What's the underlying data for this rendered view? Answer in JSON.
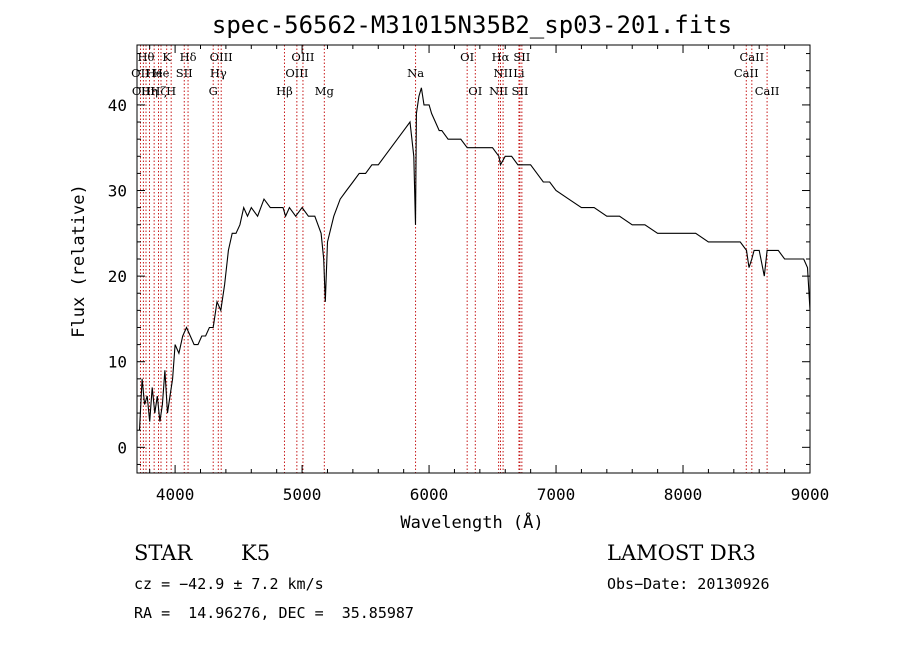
{
  "chart_data": {
    "type": "line",
    "title": "spec-56562-M31015N35B2_sp03-201.fits",
    "xlabel": "Wavelength (Å)",
    "ylabel": "Flux (relative)",
    "xlim": [
      3700,
      9000
    ],
    "ylim": [
      -3,
      47
    ],
    "xticks": [
      4000,
      5000,
      6000,
      7000,
      8000,
      9000
    ],
    "yticks": [
      0,
      10,
      20,
      30,
      40
    ],
    "series": [
      {
        "name": "flux",
        "x": [
          3720,
          3740,
          3760,
          3780,
          3800,
          3820,
          3840,
          3860,
          3880,
          3900,
          3920,
          3940,
          3960,
          3980,
          4000,
          4030,
          4060,
          4090,
          4120,
          4150,
          4180,
          4210,
          4240,
          4270,
          4300,
          4330,
          4360,
          4390,
          4420,
          4450,
          4480,
          4510,
          4540,
          4570,
          4600,
          4650,
          4700,
          4750,
          4800,
          4850,
          4870,
          4900,
          4950,
          5000,
          5050,
          5100,
          5150,
          5170,
          5183,
          5200,
          5250,
          5300,
          5350,
          5400,
          5450,
          5500,
          5550,
          5600,
          5650,
          5700,
          5750,
          5800,
          5850,
          5880,
          5893,
          5900,
          5920,
          5940,
          5960,
          5980,
          6000,
          6020,
          6050,
          6080,
          6100,
          6150,
          6200,
          6250,
          6300,
          6350,
          6400,
          6450,
          6500,
          6550,
          6563,
          6600,
          6650,
          6700,
          6750,
          6800,
          6850,
          6900,
          6950,
          7000,
          7100,
          7200,
          7300,
          7400,
          7500,
          7600,
          7700,
          7800,
          7900,
          8000,
          8100,
          8200,
          8300,
          8400,
          8450,
          8500,
          8520,
          8542,
          8560,
          8600,
          8640,
          8662,
          8700,
          8750,
          8800,
          8850,
          8900,
          8950,
          8980,
          9000
        ],
        "y": [
          2,
          8,
          5,
          6,
          3,
          7,
          4,
          6,
          3,
          5,
          9,
          4,
          6,
          8,
          12,
          11,
          13,
          14,
          13,
          12,
          12,
          13,
          13,
          14,
          14,
          17,
          16,
          19,
          23,
          25,
          25,
          26,
          28,
          27,
          28,
          27,
          29,
          28,
          28,
          28,
          27,
          28,
          27,
          28,
          27,
          27,
          25,
          22,
          17,
          24,
          27,
          29,
          30,
          31,
          32,
          32,
          33,
          33,
          34,
          35,
          36,
          37,
          38,
          34,
          26,
          39,
          41,
          42,
          40,
          40,
          40,
          39,
          38,
          37,
          37,
          36,
          36,
          36,
          35,
          35,
          35,
          35,
          35,
          34,
          33,
          34,
          34,
          33,
          33,
          33,
          32,
          31,
          31,
          30,
          29,
          28,
          28,
          27,
          27,
          26,
          26,
          25,
          25,
          25,
          25,
          24,
          24,
          24,
          24,
          23,
          21,
          22,
          23,
          23,
          20,
          23,
          23,
          23,
          22,
          22,
          22,
          22,
          21,
          16
        ]
      }
    ],
    "lines": [
      {
        "w": 3727,
        "label": "OII",
        "row": 2
      },
      {
        "w": 3750,
        "label": "OIII",
        "row": 3
      },
      {
        "w": 3771,
        "label": "Hθ",
        "row": 1
      },
      {
        "w": 3798,
        "label": "Hη",
        "row": 3
      },
      {
        "w": 3835,
        "label": "He",
        "row": 2
      },
      {
        "w": 3869,
        "label": "Hζ",
        "row": 3
      },
      {
        "w": 3889,
        "label": "He",
        "row": 2
      },
      {
        "w": 3934,
        "label": "K",
        "row": 1
      },
      {
        "w": 3969,
        "label": "H",
        "row": 3
      },
      {
        "w": 4072,
        "label": "SII",
        "row": 2
      },
      {
        "w": 4102,
        "label": "Hδ",
        "row": 1
      },
      {
        "w": 4300,
        "label": "G",
        "row": 3
      },
      {
        "w": 4340,
        "label": "Hγ",
        "row": 2
      },
      {
        "w": 4363,
        "label": "OIII",
        "row": 1
      },
      {
        "w": 4861,
        "label": "Hβ",
        "row": 3
      },
      {
        "w": 4959,
        "label": "OIII",
        "row": 2
      },
      {
        "w": 5007,
        "label": "OIII",
        "row": 1
      },
      {
        "w": 5175,
        "label": "Mg",
        "row": 3
      },
      {
        "w": 5894,
        "label": "Na",
        "row": 2
      },
      {
        "w": 6300,
        "label": "OI",
        "row": 1
      },
      {
        "w": 6364,
        "label": "OI",
        "row": 3
      },
      {
        "w": 6548,
        "label": "NII",
        "row": 3
      },
      {
        "w": 6563,
        "label": "Hα",
        "row": 1
      },
      {
        "w": 6583,
        "label": "NII",
        "row": 2
      },
      {
        "w": 6708,
        "label": "Li",
        "row": 2
      },
      {
        "w": 6716,
        "label": "SII",
        "row": 3
      },
      {
        "w": 6731,
        "label": "SII",
        "row": 1
      },
      {
        "w": 8498,
        "label": "CaII",
        "row": 2
      },
      {
        "w": 8542,
        "label": "CaII",
        "row": 1
      },
      {
        "w": 8662,
        "label": "CaII",
        "row": 3
      }
    ]
  },
  "info": {
    "class": "STAR",
    "subclass": "K5",
    "survey": "LAMOST DR3",
    "cz": "cz = −42.9 ± 7.2 km/s",
    "obs_date": "Obs−Date: 20130926",
    "radec": "RA =  14.96276, DEC =  35.85987"
  },
  "colors": {
    "spectrum": "#000000",
    "line_marker": "#c00000"
  }
}
